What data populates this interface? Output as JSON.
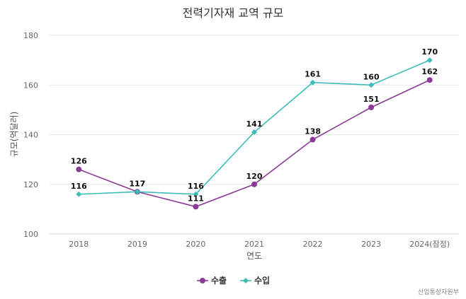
{
  "chart_data": {
    "type": "line",
    "title": "전력기자재 교역 규모",
    "xlabel": "연도",
    "ylabel": "규모(억달러)",
    "categories": [
      "2018",
      "2019",
      "2020",
      "2021",
      "2022",
      "2023",
      "2024(잠정)"
    ],
    "ylim": [
      100,
      180
    ],
    "yticks": [
      100,
      120,
      140,
      160,
      180
    ],
    "grid": true,
    "legend_position": "bottom-center",
    "series": [
      {
        "name": "수출",
        "color": "#8B3A96",
        "marker": "circle",
        "values": [
          126,
          117,
          111,
          120,
          138,
          151,
          162
        ]
      },
      {
        "name": "수입",
        "color": "#3EBDB8",
        "marker": "diamond",
        "values": [
          116,
          117,
          116,
          141,
          161,
          160,
          170
        ]
      }
    ],
    "source": "산업통상자원부"
  }
}
